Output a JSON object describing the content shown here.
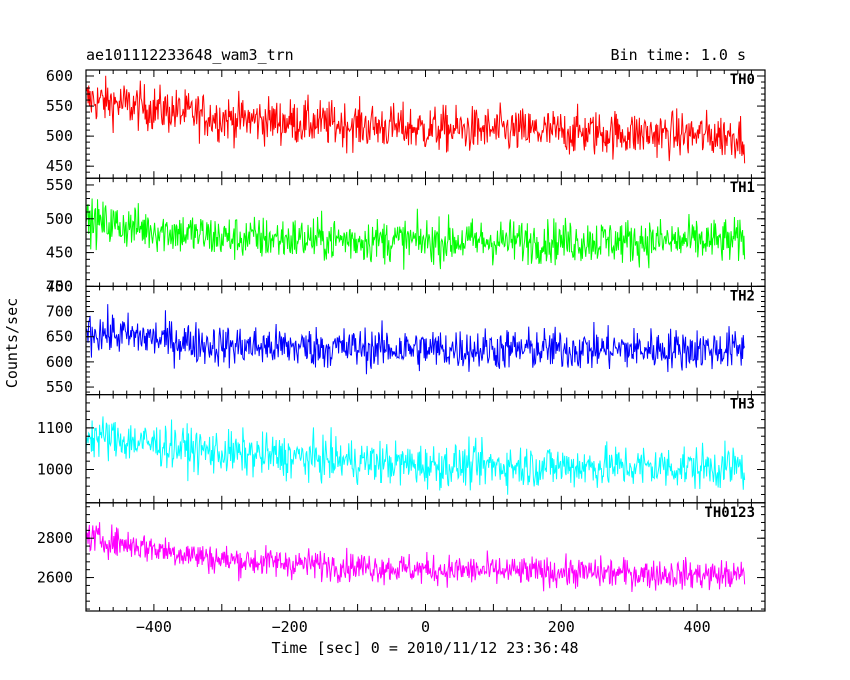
{
  "chart_data": {
    "type": "line",
    "title": "ae101112233648_wam3_trn",
    "bin_time_label": "Bin time: 1.0 s",
    "xlabel": "Time [sec] 0 = 2010/11/12 23:36:48",
    "ylabel": "Counts/sec",
    "xlim": [
      -500,
      500
    ],
    "x_ticks": [
      -400,
      -200,
      0,
      200,
      400
    ],
    "grid": false,
    "panels": [
      {
        "name": "TH0",
        "color": "#ff0000",
        "ylim": [
          430,
          610
        ],
        "y_ticks": [
          450,
          500,
          550,
          600
        ],
        "trend": [
          [
            -490,
            560
          ],
          [
            -300,
            530
          ],
          [
            0,
            512
          ],
          [
            470,
            500
          ]
        ],
        "spread": 35
      },
      {
        "name": "TH1",
        "color": "#00ff00",
        "ylim": [
          400,
          560
        ],
        "y_ticks": [
          400,
          450,
          500,
          550
        ],
        "trend": [
          [
            -490,
            495
          ],
          [
            -300,
            472
          ],
          [
            0,
            467
          ],
          [
            470,
            467
          ]
        ],
        "spread": 30
      },
      {
        "name": "TH2",
        "color": "#0000ff",
        "ylim": [
          535,
          750
        ],
        "y_ticks": [
          550,
          600,
          650,
          700,
          750
        ],
        "trend": [
          [
            -490,
            660
          ],
          [
            -300,
            632
          ],
          [
            0,
            625
          ],
          [
            470,
            625
          ]
        ],
        "spread": 38
      },
      {
        "name": "TH3",
        "color": "#00ffff",
        "ylim": [
          920,
          1180
        ],
        "y_ticks": [
          1000,
          1100
        ],
        "trend": [
          [
            -490,
            1080
          ],
          [
            -300,
            1040
          ],
          [
            0,
            1010
          ],
          [
            470,
            1005
          ]
        ],
        "spread": 48
      },
      {
        "name": "TH0123",
        "color": "#ff00ff",
        "ylim": [
          2430,
          2980
        ],
        "y_ticks": [
          2600,
          2800
        ],
        "trend": [
          [
            -490,
            2800
          ],
          [
            -300,
            2690
          ],
          [
            0,
            2640
          ],
          [
            470,
            2610
          ]
        ],
        "spread": 70
      }
    ],
    "x_data_range": [
      -500,
      470
    ]
  }
}
